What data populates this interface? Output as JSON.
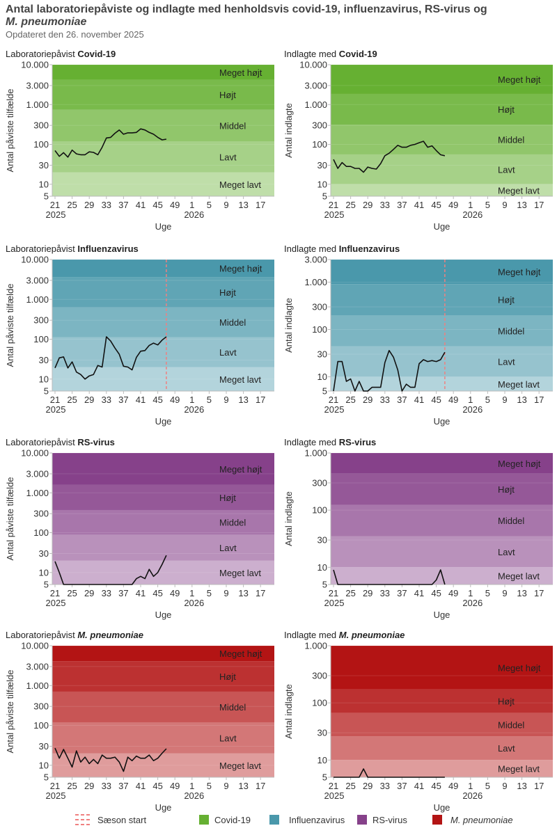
{
  "header": {
    "title_main": "Antal laboratoriepåviste og indlagte med henholdsvis covid-19, influenzavirus, RS-virus og",
    "title_italic": "M. pneumoniae",
    "subtitle": "Opdateret den 26. november 2025"
  },
  "legend": {
    "season_start": "Sæson start",
    "items": [
      {
        "label": "Covid-19",
        "color": "#66b032"
      },
      {
        "label": "Influenzavirus",
        "color": "#4a98ab"
      },
      {
        "label": "RS-virus",
        "color": "#86418a"
      },
      {
        "label": "M. pneumoniae",
        "color": "#b31414"
      }
    ]
  },
  "chart_data": [
    {
      "type": "line",
      "title_prefix": "Laboratoriepåvist ",
      "title_bold": "Covid-19",
      "italic": false,
      "color": "#66b032",
      "ylabel": "Antal påviste tilfælde",
      "xlabel": "Uge",
      "yscale": "log",
      "ylim": [
        5,
        10000
      ],
      "ytick_values": [
        5,
        10,
        30,
        100,
        300,
        1000,
        3000,
        10000
      ],
      "ytick_labels": [
        "5",
        "10",
        "30",
        "100",
        "300",
        "1.000",
        "3.000",
        "10.000"
      ],
      "bands": [
        {
          "label": "Meget højt",
          "min": 4200,
          "max": 10000
        },
        {
          "label": "Højt",
          "min": 740,
          "max": 4200
        },
        {
          "label": "Middel",
          "min": 120,
          "max": 740
        },
        {
          "label": "Lavt",
          "min": 20,
          "max": 120
        },
        {
          "label": "Meget lavt",
          "min": 5,
          "max": 20
        }
      ],
      "year": 2025,
      "weeks": [
        21,
        22,
        23,
        24,
        25,
        26,
        27,
        28,
        29,
        30,
        31,
        32,
        33,
        34,
        35,
        36,
        37,
        38,
        39,
        40,
        41,
        42,
        43,
        44,
        45,
        46,
        47
      ],
      "values": [
        70,
        50,
        62,
        48,
        72,
        58,
        55,
        55,
        65,
        63,
        55,
        85,
        145,
        150,
        190,
        230,
        180,
        195,
        195,
        200,
        245,
        230,
        200,
        180,
        150,
        130,
        135
      ]
    },
    {
      "type": "line",
      "title_prefix": "Indlagte med ",
      "title_bold": "Covid-19",
      "italic": false,
      "color": "#66b032",
      "ylabel": "Antal indlagte",
      "xlabel": "Uge",
      "yscale": "log",
      "ylim": [
        5,
        10000
      ],
      "ytick_values": [
        5,
        10,
        30,
        100,
        300,
        1000,
        3000,
        10000
      ],
      "ytick_labels": [
        "5",
        "10",
        "30",
        "100",
        "300",
        "1.000",
        "3.000",
        "10.000"
      ],
      "bands": [
        {
          "label": "Meget højt",
          "min": 1850,
          "max": 10000
        },
        {
          "label": "Højt",
          "min": 315,
          "max": 1850
        },
        {
          "label": "Middel",
          "min": 56,
          "max": 315
        },
        {
          "label": "Lavt",
          "min": 10,
          "max": 56
        },
        {
          "label": "Meget lavt",
          "min": 5,
          "max": 10
        }
      ],
      "year": 2025,
      "weeks": [
        21,
        22,
        23,
        24,
        25,
        26,
        27,
        28,
        29,
        30,
        31,
        32,
        33,
        34,
        35,
        36,
        37,
        38,
        39,
        40,
        41,
        42,
        43,
        44,
        45,
        46,
        47
      ],
      "values": [
        42,
        25,
        35,
        28,
        28,
        25,
        25,
        20,
        27,
        25,
        24,
        33,
        52,
        60,
        75,
        95,
        85,
        85,
        95,
        100,
        110,
        120,
        85,
        92,
        70,
        55,
        52
      ]
    },
    {
      "type": "line",
      "title_prefix": "Laboratoriepåvist ",
      "title_bold": "Influenzavirus",
      "italic": false,
      "color": "#4a98ab",
      "ylabel": "Antal påviste tilfælde",
      "xlabel": "Uge",
      "yscale": "log",
      "ylim": [
        5,
        10000
      ],
      "season_start_week": 47,
      "ytick_values": [
        5,
        10,
        30,
        100,
        300,
        1000,
        3000,
        10000
      ],
      "ytick_labels": [
        "5",
        "10",
        "30",
        "100",
        "300",
        "1.000",
        "3.000",
        "10.000"
      ],
      "bands": [
        {
          "label": "Meget højt",
          "min": 3650,
          "max": 10000
        },
        {
          "label": "Højt",
          "min": 630,
          "max": 3650
        },
        {
          "label": "Middel",
          "min": 112,
          "max": 630
        },
        {
          "label": "Lavt",
          "min": 20,
          "max": 112
        },
        {
          "label": "Meget lavt",
          "min": 5,
          "max": 20
        }
      ],
      "year": 2025,
      "weeks": [
        21,
        22,
        23,
        24,
        25,
        26,
        27,
        28,
        29,
        30,
        31,
        32,
        33,
        34,
        35,
        36,
        37,
        38,
        39,
        40,
        41,
        42,
        43,
        44,
        45,
        46,
        47
      ],
      "values": [
        19,
        34,
        36,
        19,
        27,
        15,
        13,
        10,
        12,
        13,
        22,
        20,
        115,
        90,
        60,
        42,
        21,
        20,
        17,
        35,
        50,
        52,
        70,
        80,
        72,
        95,
        115
      ]
    },
    {
      "type": "line",
      "title_prefix": "Indlagte med ",
      "title_bold": "Influenzavirus",
      "italic": false,
      "color": "#4a98ab",
      "ylabel": "Antal indlagte",
      "xlabel": "Uge",
      "yscale": "log",
      "ylim": [
        5,
        3000
      ],
      "season_start_week": 47,
      "ytick_values": [
        5,
        10,
        30,
        100,
        300,
        1000,
        3000
      ],
      "ytick_labels": [
        "5",
        "10",
        "30",
        "100",
        "300",
        "1.000",
        "3.000"
      ],
      "bands": [
        {
          "label": "Meget højt",
          "min": 910,
          "max": 3000
        },
        {
          "label": "Højt",
          "min": 200,
          "max": 910
        },
        {
          "label": "Middel",
          "min": 44,
          "max": 200
        },
        {
          "label": "Lavt",
          "min": 10,
          "max": 44
        },
        {
          "label": "Meget lavt",
          "min": 5,
          "max": 10
        }
      ],
      "year": 2025,
      "weeks": [
        21,
        22,
        23,
        24,
        25,
        26,
        27,
        28,
        29,
        30,
        31,
        32,
        33,
        34,
        35,
        36,
        37,
        38,
        39,
        40,
        41,
        42,
        43,
        44,
        45,
        46,
        47
      ],
      "values": [
        5,
        21,
        21,
        8,
        9,
        5,
        8,
        5,
        5,
        6,
        6,
        6,
        20,
        36,
        26,
        14,
        5,
        7,
        6,
        6,
        19,
        23,
        21,
        22,
        21,
        23,
        33
      ]
    },
    {
      "type": "line",
      "title_prefix": "Laboratoriepåvist ",
      "title_bold": "RS-virus",
      "italic": false,
      "color": "#86418a",
      "ylabel": "Antal påviste tilfælde",
      "xlabel": "Uge",
      "yscale": "log",
      "ylim": [
        5,
        10000
      ],
      "ytick_values": [
        5,
        10,
        30,
        100,
        300,
        1000,
        3000,
        10000
      ],
      "ytick_labels": [
        "5",
        "10",
        "30",
        "100",
        "300",
        "1.000",
        "3.000",
        "10.000"
      ],
      "bands": [
        {
          "label": "Meget højt",
          "min": 1580,
          "max": 10000
        },
        {
          "label": "Højt",
          "min": 370,
          "max": 1580
        },
        {
          "label": "Middel",
          "min": 89,
          "max": 370
        },
        {
          "label": "Lavt",
          "min": 20,
          "max": 89
        },
        {
          "label": "Meget lavt",
          "min": 5,
          "max": 20
        }
      ],
      "year": 2025,
      "weeks": [
        21,
        22,
        23,
        24,
        25,
        26,
        27,
        28,
        29,
        30,
        31,
        32,
        33,
        34,
        35,
        36,
        37,
        38,
        39,
        40,
        41,
        42,
        43,
        44,
        45,
        46,
        47
      ],
      "values": [
        19,
        10,
        5,
        5,
        5,
        5,
        5,
        5,
        5,
        5,
        5,
        5,
        5,
        5,
        5,
        5,
        5,
        5,
        5,
        7,
        8,
        7,
        12,
        8,
        10,
        16,
        27
      ]
    },
    {
      "type": "line",
      "title_prefix": "Indlagte med ",
      "title_bold": "RS-virus",
      "italic": false,
      "color": "#86418a",
      "ylabel": "Antal indlagte",
      "xlabel": "Uge",
      "yscale": "log",
      "ylim": [
        5,
        1000
      ],
      "ytick_values": [
        5,
        10,
        30,
        100,
        300,
        1000
      ],
      "ytick_labels": [
        "5",
        "10",
        "30",
        "100",
        "300",
        "1.000"
      ],
      "bands": [
        {
          "label": "Meget højt",
          "min": 435,
          "max": 1000
        },
        {
          "label": "Højt",
          "min": 123,
          "max": 435
        },
        {
          "label": "Middel",
          "min": 35,
          "max": 123
        },
        {
          "label": "Lavt",
          "min": 10,
          "max": 35
        },
        {
          "label": "Meget lavt",
          "min": 5,
          "max": 10
        }
      ],
      "year": 2025,
      "weeks": [
        21,
        22,
        23,
        24,
        25,
        26,
        27,
        28,
        29,
        30,
        31,
        32,
        33,
        34,
        35,
        36,
        37,
        38,
        39,
        40,
        41,
        42,
        43,
        44,
        45,
        46,
        47
      ],
      "values": [
        9,
        5,
        5,
        5,
        5,
        5,
        5,
        5,
        5,
        5,
        5,
        5,
        5,
        5,
        5,
        5,
        5,
        5,
        5,
        5,
        5,
        5,
        5,
        5,
        6,
        9,
        5
      ]
    },
    {
      "type": "line",
      "title_prefix": "Laboratoriepåvist ",
      "title_bold": "M. pneumoniae",
      "italic": true,
      "color": "#b31414",
      "ylabel": "Antal påviste tilfælde",
      "xlabel": "Uge",
      "yscale": "log",
      "ylim": [
        5,
        10000
      ],
      "ytick_values": [
        5,
        10,
        30,
        100,
        300,
        1000,
        3000,
        10000
      ],
      "ytick_labels": [
        "5",
        "10",
        "30",
        "100",
        "300",
        "1.000",
        "3.000",
        "10.000"
      ],
      "bands": [
        {
          "label": "Meget højt",
          "min": 4100,
          "max": 10000
        },
        {
          "label": "Højt",
          "min": 705,
          "max": 4100
        },
        {
          "label": "Middel",
          "min": 120,
          "max": 705
        },
        {
          "label": "Lavt",
          "min": 20,
          "max": 120
        },
        {
          "label": "Meget lavt",
          "min": 5,
          "max": 20
        }
      ],
      "year": 2025,
      "weeks": [
        21,
        22,
        23,
        24,
        25,
        26,
        27,
        28,
        29,
        30,
        31,
        32,
        33,
        34,
        35,
        36,
        37,
        38,
        39,
        40,
        41,
        42,
        43,
        44,
        45,
        46,
        47
      ],
      "values": [
        27,
        15,
        25,
        15,
        9,
        23,
        12,
        16,
        11,
        14,
        11,
        18,
        15,
        15,
        16,
        12,
        7,
        16,
        13,
        17,
        15,
        15,
        18,
        13,
        15,
        20,
        26
      ]
    },
    {
      "type": "line",
      "title_prefix": "Indlagte med ",
      "title_bold": "M. pneumoniae",
      "italic": true,
      "color": "#b31414",
      "ylabel": "Antal indlagte",
      "xlabel": "Uge",
      "yscale": "log",
      "ylim": [
        5,
        1000
      ],
      "ytick_values": [
        5,
        10,
        30,
        100,
        300,
        1000
      ],
      "ytick_labels": [
        "5",
        "10",
        "30",
        "100",
        "300",
        "1.000"
      ],
      "bands": [
        {
          "label": "Meget højt",
          "min": 173,
          "max": 1000
        },
        {
          "label": "Højt",
          "min": 67,
          "max": 173
        },
        {
          "label": "Middel",
          "min": 26,
          "max": 67
        },
        {
          "label": "Lavt",
          "min": 10,
          "max": 26
        },
        {
          "label": "Meget lavt",
          "min": 5,
          "max": 10
        }
      ],
      "year": 2025,
      "weeks": [
        21,
        22,
        23,
        24,
        25,
        26,
        27,
        28,
        29,
        30,
        31,
        32,
        33,
        34,
        35,
        36,
        37,
        38,
        39,
        40,
        41,
        42,
        43,
        44,
        45,
        46,
        47
      ],
      "values": [
        5,
        5,
        5,
        5,
        5,
        5,
        5,
        7,
        5,
        5,
        5,
        5,
        5,
        5,
        5,
        5,
        5,
        5,
        5,
        5,
        5,
        5,
        5,
        5,
        5,
        5,
        5
      ]
    }
  ],
  "x_axis": {
    "tick_labels": [
      "21",
      "25",
      "29",
      "33",
      "37",
      "41",
      "45",
      "49",
      "1",
      "5",
      "9",
      "13",
      "17"
    ],
    "year_labels": [
      "2025",
      "2026"
    ]
  }
}
